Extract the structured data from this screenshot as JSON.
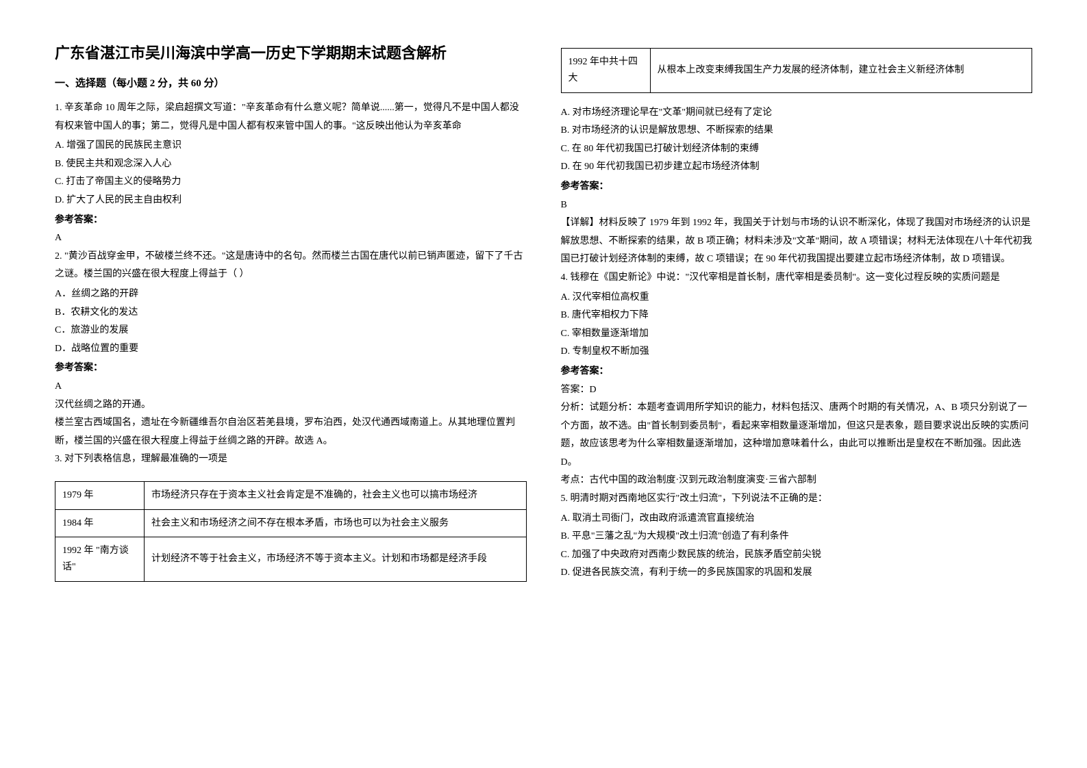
{
  "title": "广东省湛江市吴川海滨中学高一历史下学期期末试题含解析",
  "section_header": "一、选择题（每小题 2 分，共 60 分）",
  "q1": {
    "text": "1. 辛亥革命 10 周年之际，梁启超撰文写道：\"辛亥革命有什么意义呢？简单说......第一，觉得凡不是中国人都没有权来管中国人的事；第二，觉得凡是中国人都有权来管中国人的事。\"这反映出他认为辛亥革命",
    "opt_a": "A.  增强了国民的民族民主意识",
    "opt_b": "B.  使民主共和观念深入人心",
    "opt_c": "C.  打击了帝国主义的侵略势力",
    "opt_d": "D.  扩大了人民的民主自由权利",
    "answer_label": "参考答案：",
    "answer": "A"
  },
  "q2": {
    "text": "2. \"黄沙百战穿金甲，不破楼兰终不还。\"这是唐诗中的名句。然而楼兰古国在唐代以前已销声匿迹，留下了千古之谜。楼兰国的兴盛在很大程度上得益于（        ）",
    "opt_a": "A．丝绸之路的开辟",
    "opt_b": "B．农耕文化的发达",
    "opt_c": "C．旅游业的发展",
    "opt_d": "D．战略位置的重要",
    "answer_label": "参考答案：",
    "answer": "A",
    "explanation1": "汉代丝绸之路的开通。",
    "explanation2": "楼兰室古西域国名，遗址在今新疆维吾尔自治区若羌县境，罗布泊西，处汉代通西域南道上。从其地理位置判断，楼兰国的兴盛在很大程度上得益于丝绸之路的开辟。故选 A。"
  },
  "q3": {
    "text": "3. 对下列表格信息，理解最准确的一项是",
    "table_rows": [
      {
        "year": "1979 年",
        "content": "市场经济只存在于资本主义社会肯定是不准确的，社会主义也可以搞市场经济"
      },
      {
        "year": "1984 年",
        "content": "社会主义和市场经济之间不存在根本矛盾，市场也可以为社会主义服务"
      },
      {
        "year": "1992 年 \"南方谈话\"",
        "content": "计划经济不等于社会主义，市场经济不等于资本主义。计划和市场都是经济手段"
      },
      {
        "year": "1992 年中共十四大",
        "content": "从根本上改变束缚我国生产力发展的经济体制，建立社会主义新经济体制"
      }
    ],
    "opt_a": "A. 对市场经济理论早在\"文革\"期间就已经有了定论",
    "opt_b": "B. 对市场经济的认识是解放思想、不断探索的结果",
    "opt_c": "C. 在 80 年代初我国已打破计划经济体制的束缚",
    "opt_d": "D. 在 90 年代初我国已初步建立起市场经济体制",
    "answer_label": "参考答案：",
    "answer": "B",
    "explanation": "【详解】材料反映了 1979 年到 1992 年，我国关于计划与市场的认识不断深化，体现了我国对市场经济的认识是解放思想、不断探索的结果，故 B 项正确；材料未涉及\"文革\"期间，故 A 项错误；材料无法体现在八十年代初我国已打破计划经济体制的束缚，故 C 项错误；在 90 年代初我国提出要建立起市场经济体制，故 D 项错误。"
  },
  "q4": {
    "text": "4. 钱穆在《国史新论》中说：\"汉代宰相是首长制，唐代宰相是委员制\"。这一变化过程反映的实质问题是",
    "opt_a": "A. 汉代宰相位高权重",
    "opt_b": "B. 唐代宰相权力下降",
    "opt_c": "C. 宰相数量逐渐增加",
    "opt_d": "D. 专制皇权不断加强",
    "answer_label": "参考答案：",
    "answer": "答案：D",
    "explanation1": "分析：试题分析：本题考查调用所学知识的能力，材料包括汉、唐两个时期的有关情况，A、B 项只分别说了一个方面，故不选。由\"首长制到委员制\"，看起来宰相数量逐渐增加，但这只是表象，题目要求说出反映的实质问题，故应该思考为什么宰相数量逐渐增加，这种增加意味着什么，由此可以推断出是皇权在不断加强。因此选 D。",
    "explanation2": "考点：古代中国的政治制度·汉到元政治制度演变·三省六部制"
  },
  "q5": {
    "text": "5. 明清时期对西南地区实行\"改土归流\"，下列说法不正确的是：",
    "opt_a": "A. 取消土司衙门，改由政府派遣流官直接统治",
    "opt_b": "B. 平息\"三藩之乱\"为大规模\"改土归流\"创造了有利条件",
    "opt_c": "C. 加强了中央政府对西南少数民族的统治，民族矛盾空前尖锐",
    "opt_d": "D. 促进各民族交流，有利于统一的多民族国家的巩固和发展"
  }
}
